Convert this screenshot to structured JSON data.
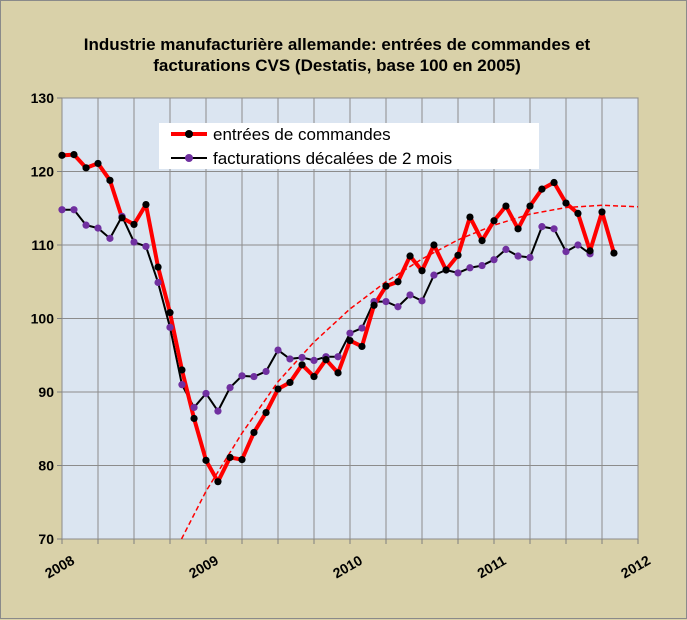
{
  "chart_data": {
    "type": "line",
    "title_lines": [
      "Industrie manufacturière allemande: entrées de commandes et",
      "facturations  CVS (Destatis, base 100 en 2005)"
    ],
    "xlabel": "",
    "ylabel": "",
    "xlim": [
      2008,
      2012
    ],
    "ylim": [
      70,
      130
    ],
    "y_ticks": [
      "70",
      "80",
      "90",
      "100",
      "110",
      "120",
      "130"
    ],
    "x_ticks": [
      "2008",
      "2009",
      "2010",
      "2011",
      "2012"
    ],
    "grid": true,
    "legend_position": "top-center",
    "series": [
      {
        "name": "entrées de commandes",
        "color": "#ff0000",
        "marker_color": "#000000",
        "points": [
          [
            2008.0,
            122.2
          ],
          [
            2008.083,
            122.3
          ],
          [
            2008.167,
            120.5
          ],
          [
            2008.25,
            121.1
          ],
          [
            2008.333,
            118.8
          ],
          [
            2008.417,
            113.7
          ],
          [
            2008.5,
            112.8
          ],
          [
            2008.583,
            115.5
          ],
          [
            2008.667,
            107.0
          ],
          [
            2008.75,
            100.8
          ],
          [
            2008.833,
            93.0
          ],
          [
            2008.917,
            86.4
          ],
          [
            2009.0,
            80.7
          ],
          [
            2009.083,
            77.8
          ],
          [
            2009.167,
            81.1
          ],
          [
            2009.25,
            80.8
          ],
          [
            2009.333,
            84.5
          ],
          [
            2009.417,
            87.2
          ],
          [
            2009.5,
            90.4
          ],
          [
            2009.583,
            91.3
          ],
          [
            2009.667,
            93.7
          ],
          [
            2009.75,
            92.1
          ],
          [
            2009.833,
            94.4
          ],
          [
            2009.917,
            92.6
          ],
          [
            2010.0,
            97.0
          ],
          [
            2010.083,
            96.2
          ],
          [
            2010.167,
            101.8
          ],
          [
            2010.25,
            104.4
          ],
          [
            2010.333,
            105.0
          ],
          [
            2010.417,
            108.5
          ],
          [
            2010.5,
            106.5
          ],
          [
            2010.583,
            110.0
          ],
          [
            2010.667,
            106.6
          ],
          [
            2010.75,
            108.6
          ],
          [
            2010.833,
            113.8
          ],
          [
            2010.917,
            110.6
          ],
          [
            2011.0,
            113.3
          ],
          [
            2011.083,
            115.3
          ],
          [
            2011.167,
            112.2
          ],
          [
            2011.25,
            115.3
          ],
          [
            2011.333,
            117.6
          ],
          [
            2011.417,
            118.5
          ],
          [
            2011.5,
            115.7
          ],
          [
            2011.583,
            114.3
          ],
          [
            2011.667,
            109.2
          ],
          [
            2011.75,
            114.5
          ],
          [
            2011.833,
            108.9
          ]
        ]
      },
      {
        "name": "facturations décalées de 2 mois",
        "color": "#000000",
        "marker_color": "#7030a0",
        "points": [
          [
            2008.0,
            114.8
          ],
          [
            2008.083,
            114.8
          ],
          [
            2008.167,
            112.7
          ],
          [
            2008.25,
            112.3
          ],
          [
            2008.333,
            110.9
          ],
          [
            2008.417,
            113.9
          ],
          [
            2008.5,
            110.4
          ],
          [
            2008.583,
            109.8
          ],
          [
            2008.667,
            104.9
          ],
          [
            2008.75,
            98.8
          ],
          [
            2008.833,
            91.0
          ],
          [
            2008.917,
            87.9
          ],
          [
            2009.0,
            89.8
          ],
          [
            2009.083,
            87.4
          ],
          [
            2009.167,
            90.6
          ],
          [
            2009.25,
            92.2
          ],
          [
            2009.333,
            92.1
          ],
          [
            2009.417,
            92.8
          ],
          [
            2009.5,
            95.7
          ],
          [
            2009.583,
            94.5
          ],
          [
            2009.667,
            94.7
          ],
          [
            2009.75,
            94.3
          ],
          [
            2009.833,
            94.8
          ],
          [
            2009.917,
            94.8
          ],
          [
            2010.0,
            98.0
          ],
          [
            2010.083,
            98.7
          ],
          [
            2010.167,
            102.3
          ],
          [
            2010.25,
            102.3
          ],
          [
            2010.333,
            101.6
          ],
          [
            2010.417,
            103.2
          ],
          [
            2010.5,
            102.4
          ],
          [
            2010.583,
            105.9
          ],
          [
            2010.667,
            106.6
          ],
          [
            2010.75,
            106.2
          ],
          [
            2010.833,
            106.9
          ],
          [
            2010.917,
            107.2
          ],
          [
            2011.0,
            108.0
          ],
          [
            2011.083,
            109.4
          ],
          [
            2011.167,
            108.5
          ],
          [
            2011.25,
            108.3
          ],
          [
            2011.333,
            112.5
          ],
          [
            2011.417,
            112.2
          ],
          [
            2011.5,
            109.1
          ],
          [
            2011.583,
            110.0
          ],
          [
            2011.667,
            108.8
          ]
        ]
      }
    ],
    "trend_line": {
      "color": "#ff0000",
      "style": "dashed",
      "points": [
        [
          2008.83,
          70.0
        ],
        [
          2009.0,
          76.5
        ],
        [
          2009.25,
          84.4
        ],
        [
          2009.5,
          91.4
        ],
        [
          2009.75,
          96.8
        ],
        [
          2010.0,
          101.3
        ],
        [
          2010.25,
          105.0
        ],
        [
          2010.5,
          108.1
        ],
        [
          2010.75,
          110.7
        ],
        [
          2011.0,
          112.7
        ],
        [
          2011.25,
          114.2
        ],
        [
          2011.5,
          115.1
        ],
        [
          2011.75,
          115.4
        ],
        [
          2012.0,
          115.2
        ]
      ]
    }
  }
}
